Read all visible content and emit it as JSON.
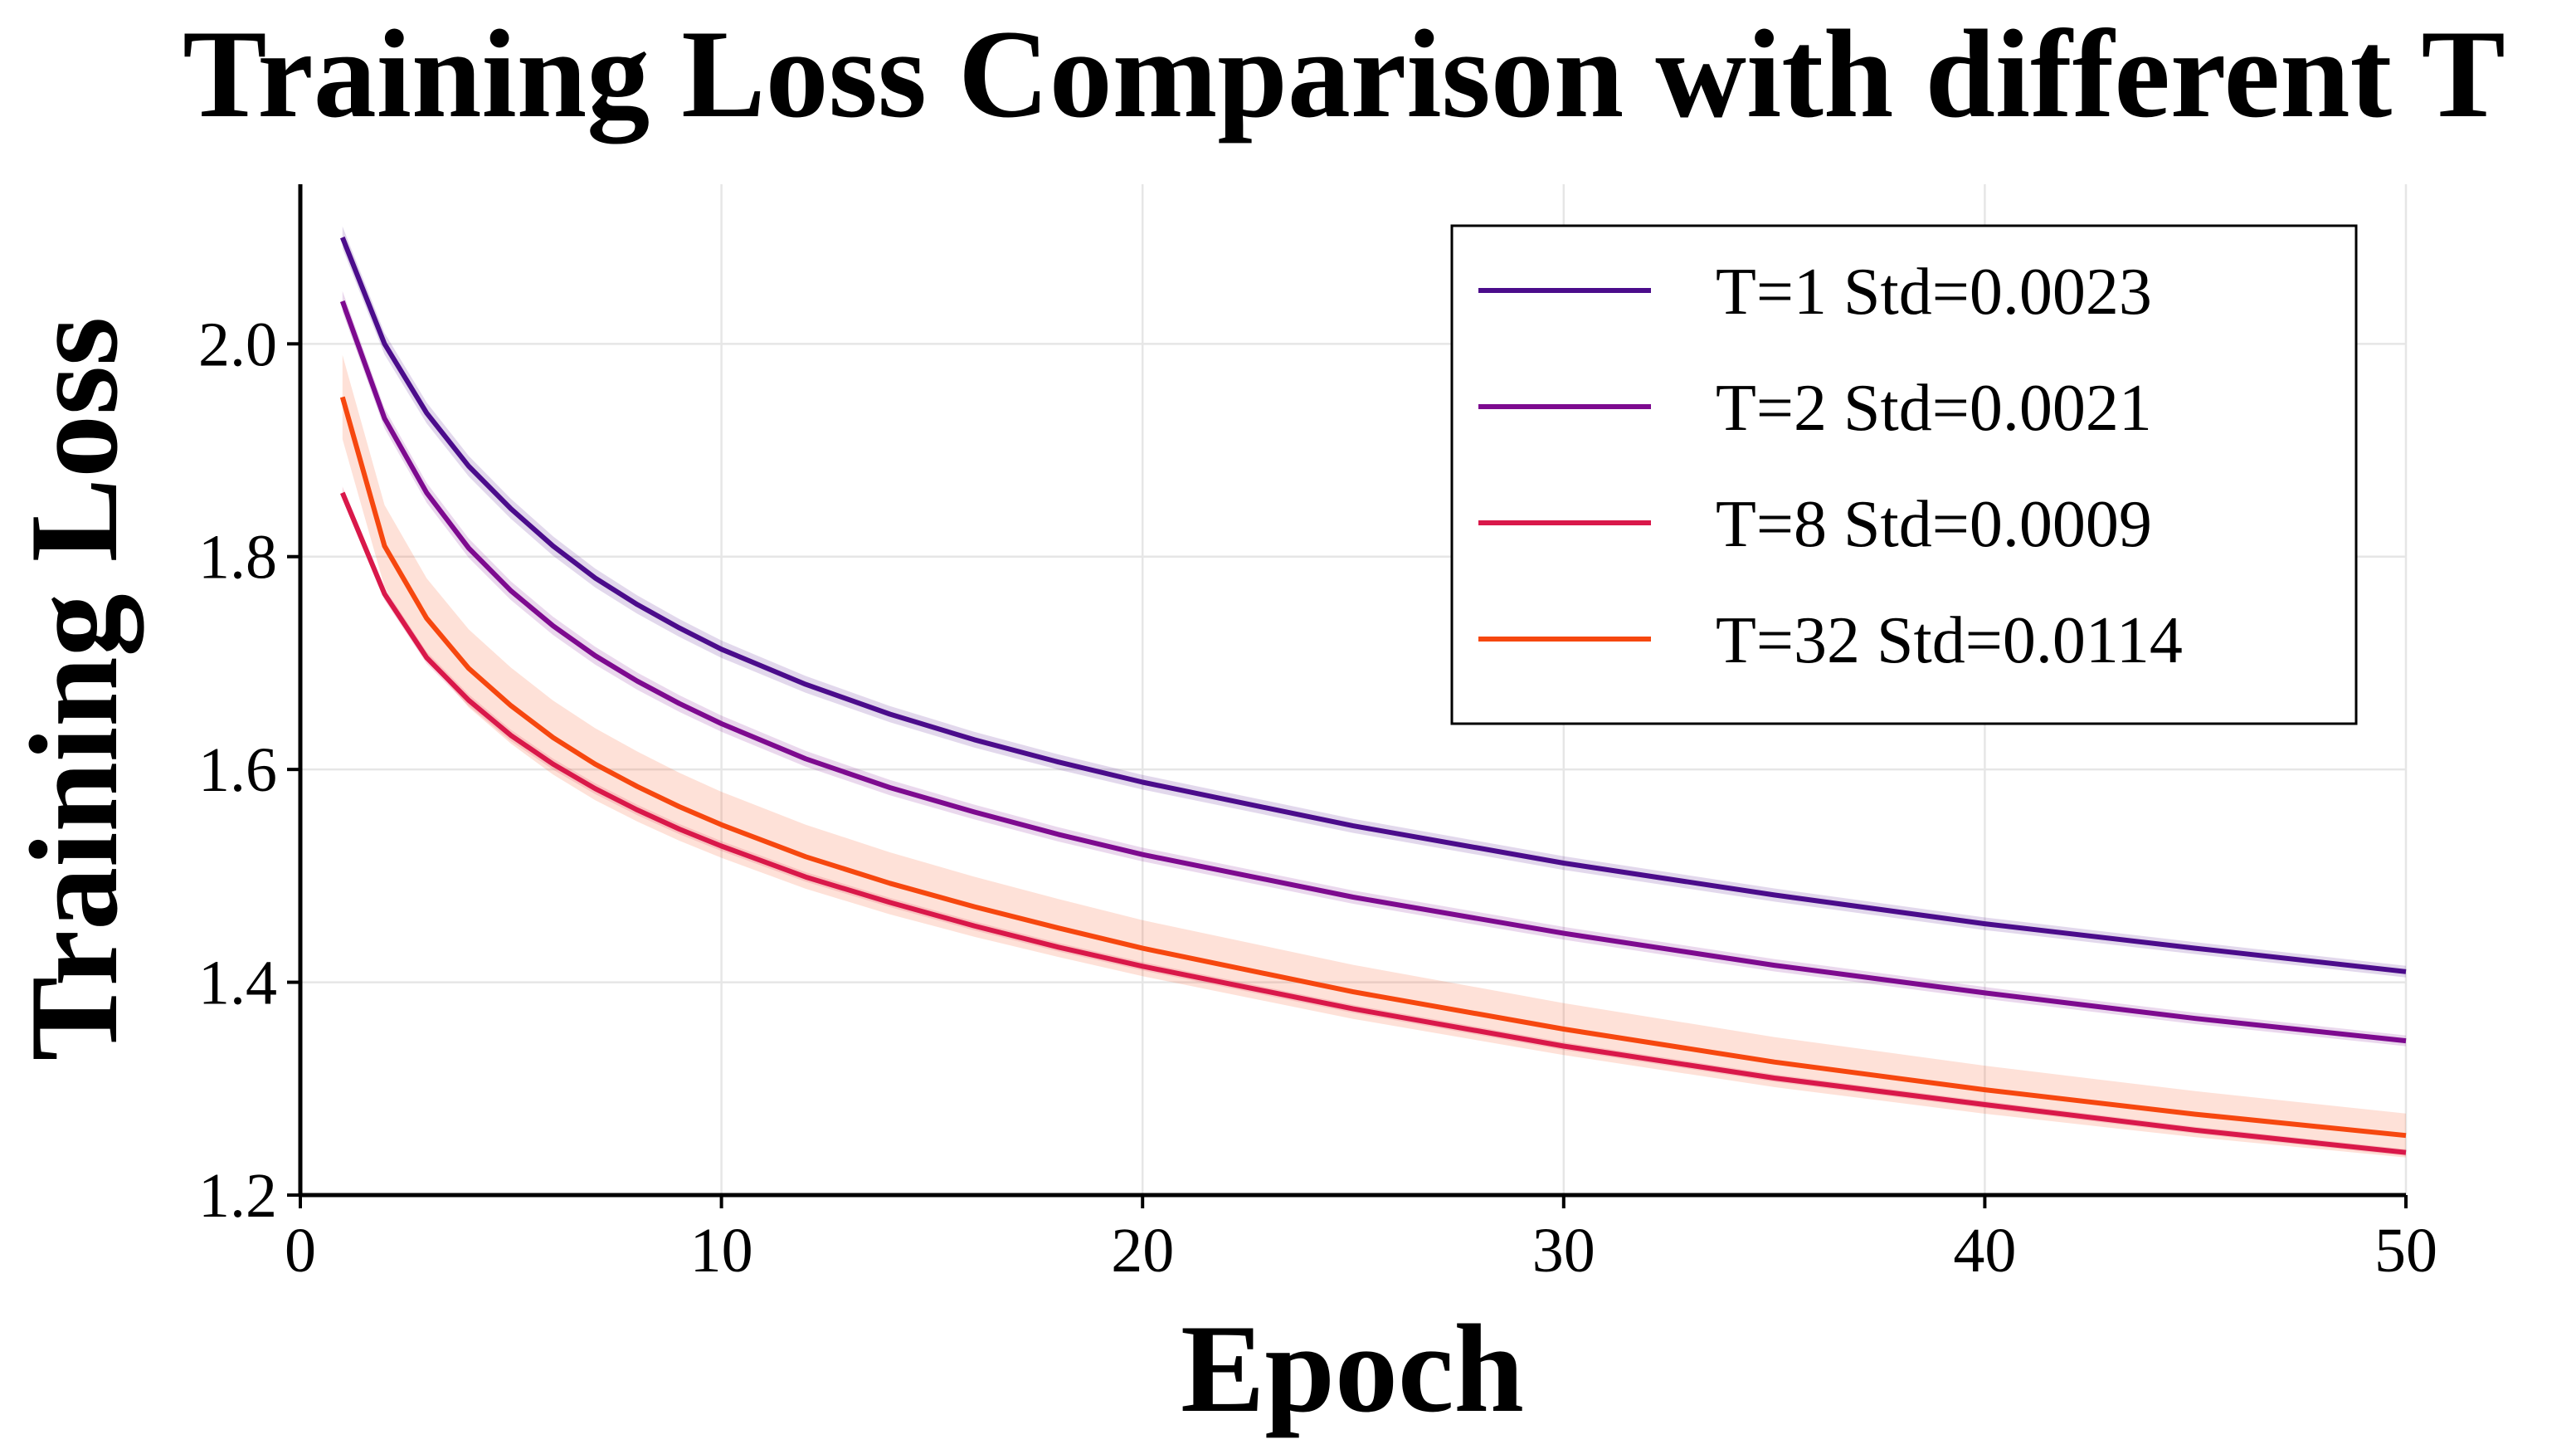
{
  "chart_data": {
    "type": "line",
    "title": "Training Loss Comparison with different T",
    "xlabel": "Epoch",
    "ylabel": "Training Loss",
    "xlim": [
      0,
      50
    ],
    "ylim": [
      1.2,
      2.15
    ],
    "grid": true,
    "legend_position": "top-right",
    "x_ticks": [
      0,
      10,
      20,
      30,
      40,
      50
    ],
    "x_tick_labels": [
      "0",
      "10",
      "20",
      "30",
      "40",
      "50"
    ],
    "y_ticks": [
      1.2,
      1.4,
      1.6,
      1.8,
      2.0
    ],
    "y_tick_labels": [
      "1.2",
      "1.4",
      "1.6",
      "1.8",
      "2.0"
    ],
    "x": [
      1,
      2,
      3,
      4,
      5,
      6,
      7,
      8,
      9,
      10,
      12,
      14,
      16,
      18,
      20,
      25,
      30,
      35,
      40,
      45,
      50
    ],
    "series": [
      {
        "name": "T=1",
        "legend_label": "T=1  Std=0.0023",
        "color": "#4b0c8b",
        "std": 0.0023,
        "values": [
          2.1,
          2.0,
          1.935,
          1.885,
          1.845,
          1.81,
          1.78,
          1.755,
          1.733,
          1.713,
          1.68,
          1.652,
          1.628,
          1.607,
          1.588,
          1.547,
          1.512,
          1.482,
          1.455,
          1.432,
          1.41
        ]
      },
      {
        "name": "T=2",
        "legend_label": "T=2  Std=0.0021",
        "color": "#7d0a8f",
        "std": 0.0021,
        "values": [
          2.04,
          1.93,
          1.86,
          1.808,
          1.768,
          1.735,
          1.707,
          1.683,
          1.662,
          1.643,
          1.61,
          1.583,
          1.56,
          1.539,
          1.52,
          1.48,
          1.446,
          1.416,
          1.39,
          1.366,
          1.345
        ]
      },
      {
        "name": "T=8",
        "legend_label": "T=8  Std=0.0009",
        "color": "#d9184a",
        "std": 0.0009,
        "values": [
          1.86,
          1.765,
          1.705,
          1.665,
          1.632,
          1.605,
          1.582,
          1.562,
          1.544,
          1.528,
          1.499,
          1.475,
          1.453,
          1.433,
          1.415,
          1.375,
          1.34,
          1.31,
          1.285,
          1.261,
          1.24
        ]
      },
      {
        "name": "T=32",
        "legend_label": "T=32  Std=0.0114",
        "color": "#f6470f",
        "std": 0.0114,
        "values": [
          1.95,
          1.81,
          1.742,
          1.695,
          1.66,
          1.63,
          1.605,
          1.584,
          1.565,
          1.548,
          1.518,
          1.493,
          1.471,
          1.451,
          1.432,
          1.391,
          1.356,
          1.325,
          1.299,
          1.276,
          1.256
        ]
      }
    ]
  }
}
